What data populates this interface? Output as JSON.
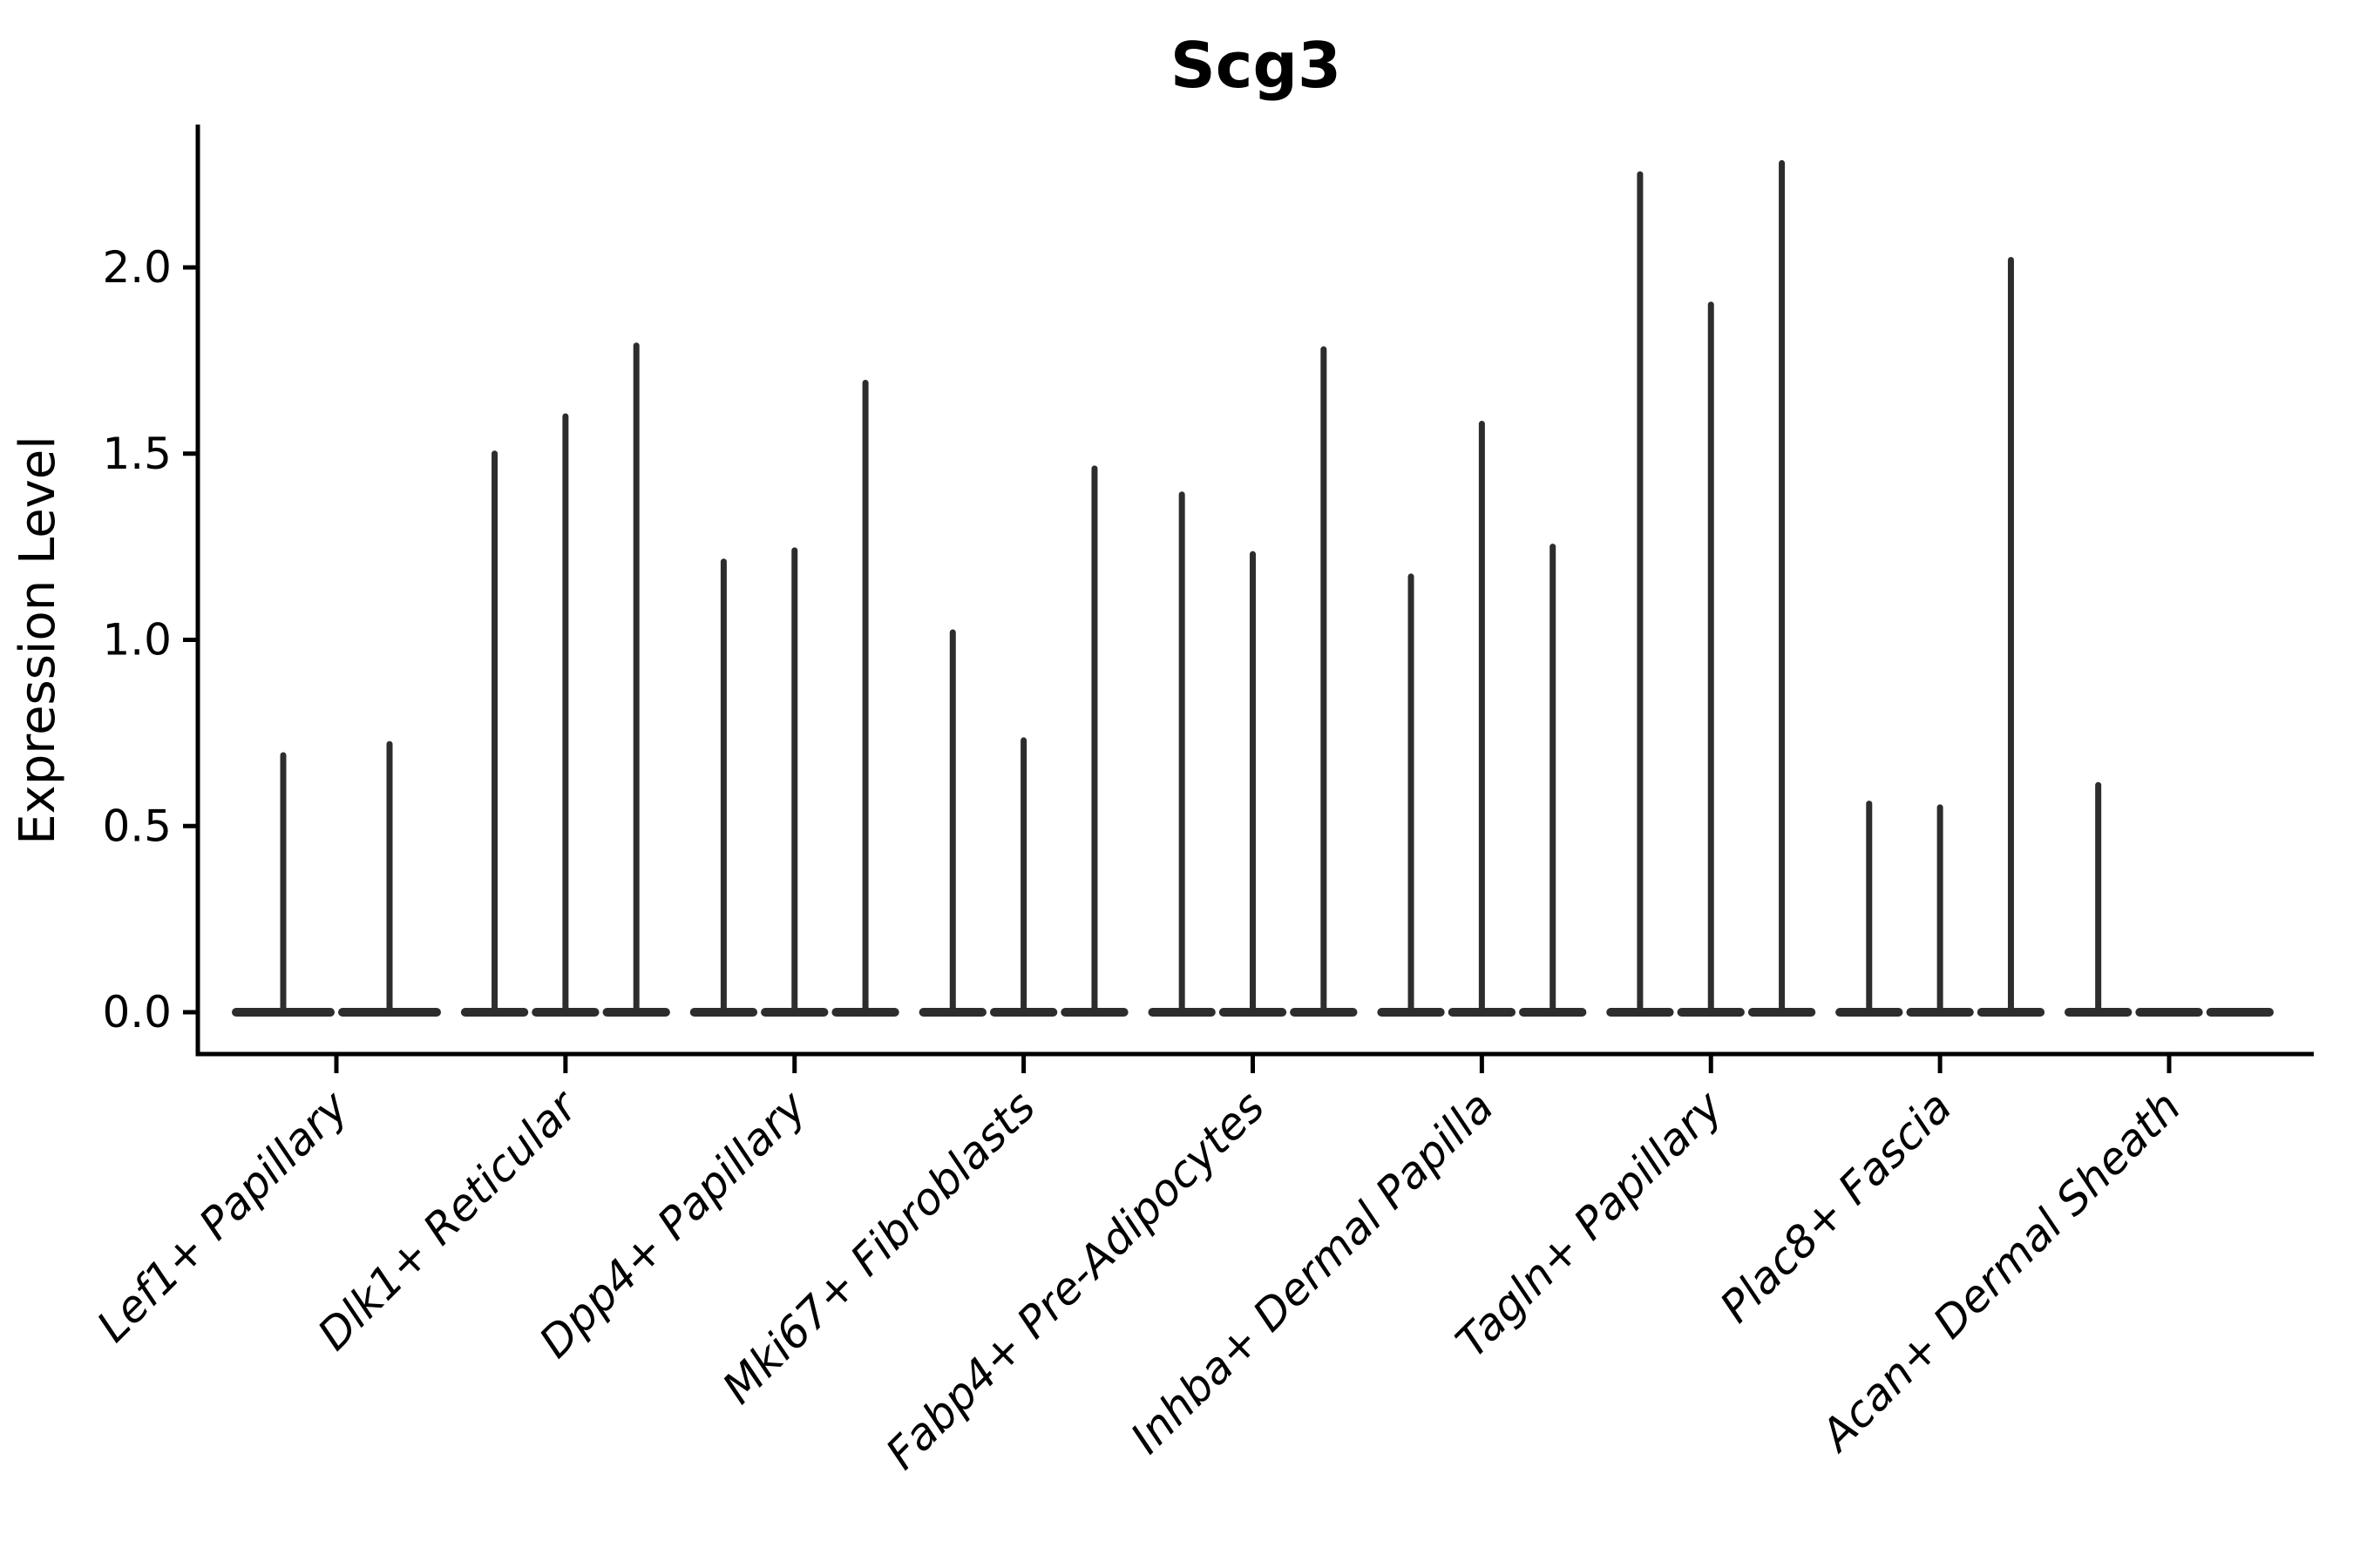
{
  "figure": {
    "background": "#ffffff",
    "title": "Scg3",
    "ylabel": "Expression Level"
  },
  "chart_data": {
    "type": "violin",
    "title": "Scg3",
    "xlabel": "",
    "ylabel": "Expression Level",
    "ylim": [
      -0.11,
      2.38
    ],
    "yticks": [
      "0.0",
      "0.5",
      "1.0",
      "1.5",
      "2.0"
    ],
    "ytick_values": [
      0.0,
      0.5,
      1.0,
      1.5,
      2.0
    ],
    "grid": "off",
    "legend": "none",
    "violin_color": "#2d2d2d",
    "axis_color": "#000000",
    "categories": [
      "Lef1+ Papillary",
      "Dlk1+ Reticular",
      "Dpp4+ Papillary",
      "Mki67+ Fibroblasts",
      "Fabp4+ Pre-Adipocytes",
      "Inhba+ Dermal Papilla",
      "Tagln+ Papillary",
      "Plac8+ Fascia",
      "Acan+ Dermal Sheath"
    ],
    "series_note": "Each category shows thin violins (most cells at 0 expression, thin spike to max). Values below are the max expression of each violin, left-to-right within the category.",
    "violin_max_values": [
      [
        0.69,
        0.72
      ],
      [
        1.5,
        1.6,
        1.79
      ],
      [
        1.21,
        1.24,
        1.69
      ],
      [
        1.02,
        0.73,
        1.46
      ],
      [
        1.39,
        1.23,
        1.78
      ],
      [
        1.17,
        1.58,
        1.25
      ],
      [
        2.25,
        1.9,
        2.28
      ],
      [
        0.56,
        0.55,
        2.02
      ],
      [
        0.61,
        0.0,
        0.0
      ]
    ]
  }
}
